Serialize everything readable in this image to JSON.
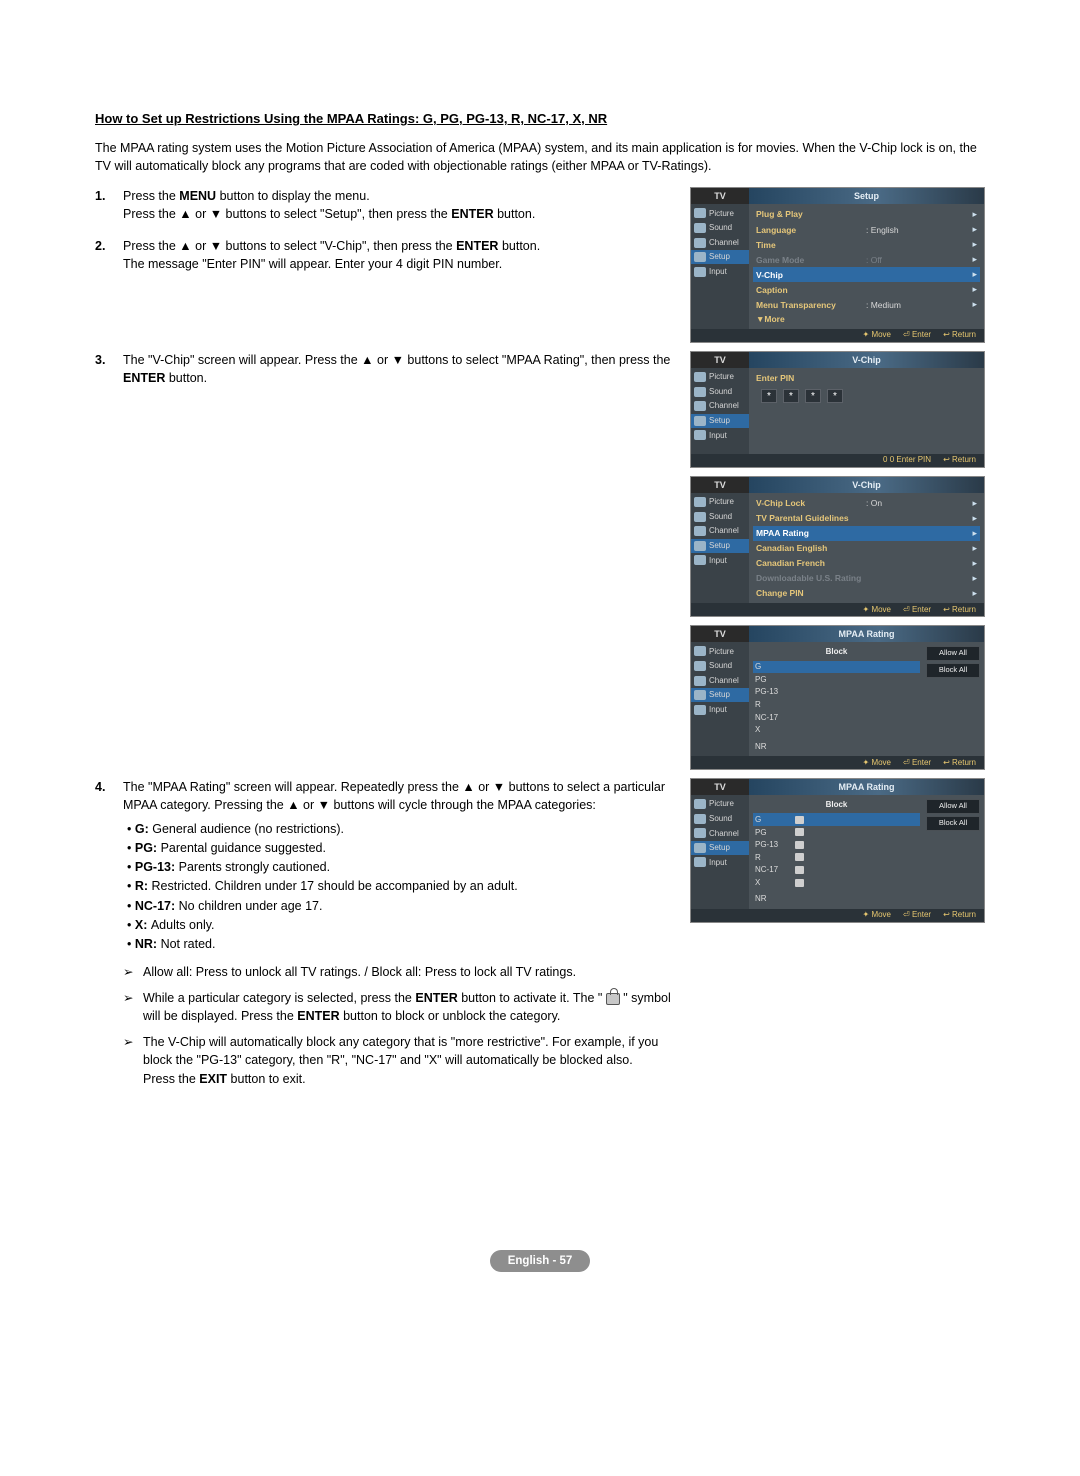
{
  "title": "How to Set up Restrictions Using the MPAA Ratings: G, PG, PG-13, R, NC-17, X, NR",
  "intro": "The MPAA rating system uses the Motion Picture Association of America (MPAA) system, and its main application is for movies. When the V-Chip lock is on, the TV will automatically block any programs that are coded with objectionable ratings (either MPAA or TV-Ratings).",
  "steps": {
    "s1a": "Press the ",
    "s1b": " button to display the menu.",
    "s1c": "Press the ▲ or ▼ buttons to select \"Setup\", then press the ",
    "s1d": " button.",
    "s2a": "Press the ▲ or ▼ buttons to select \"V-Chip\", then press the ",
    "s2b": " button.",
    "s2c": "The message \"Enter PIN\" will appear. Enter your 4 digit PIN number.",
    "s3a": "The \"V-Chip\" screen will appear. Press the ▲ or ▼ buttons to select \"MPAA Rating\", then press the ",
    "s3b": " button.",
    "s4": "The \"MPAA Rating\" screen will appear. Repeatedly press the ▲ or ▼ buttons to select a particular MPAA category. Pressing the ▲ or ▼ buttons will cycle through the MPAA categories:",
    "menu": "MENU",
    "enter": "ENTER",
    "exit": "EXIT"
  },
  "categories": [
    {
      "k": "G",
      "d": "General audience (no restrictions)."
    },
    {
      "k": "PG",
      "d": "Parental guidance suggested."
    },
    {
      "k": "PG-13",
      "d": "Parents strongly cautioned."
    },
    {
      "k": "R",
      "d": "Restricted. Children under 17 should be accompanied by an adult."
    },
    {
      "k": "NC-17",
      "d": "No children under age 17."
    },
    {
      "k": "X",
      "d": "Adults only."
    },
    {
      "k": "NR",
      "d": "Not rated."
    }
  ],
  "notes": {
    "n1": "Allow all: Press to unlock all TV ratings. / Block all: Press to lock all TV ratings.",
    "n2a": "While a particular category is selected, press the ",
    "n2b": " button to activate it. The \" ",
    "n2c": " \" symbol will be displayed. Press the ",
    "n2d": " button to block or unblock the category.",
    "n3a": "The V-Chip will automatically block any category that is \"more restrictive\". For example, if you block the \"PG-13\" category, then \"R\", \"NC-17\" and \"X\" will automatically be blocked also.",
    "n3b": "Press the ",
    "n3c": " button to exit."
  },
  "side_tabs": [
    "Picture",
    "Sound",
    "Channel",
    "Setup",
    "Input"
  ],
  "shot1": {
    "title": "Setup",
    "rows": [
      {
        "l": "Plug & Play",
        "v": "",
        "a": true
      },
      {
        "l": "Language",
        "v": ": English",
        "a": true
      },
      {
        "l": "Time",
        "v": "",
        "a": true
      },
      {
        "l": "Game Mode",
        "v": ": Off",
        "a": true,
        "dis": true
      },
      {
        "l": "V-Chip",
        "v": "",
        "a": true,
        "sel": true
      },
      {
        "l": "Caption",
        "v": "",
        "a": true
      },
      {
        "l": "Menu Transparency",
        "v": ": Medium",
        "a": true
      },
      {
        "l": "▼More",
        "v": "",
        "a": false
      }
    ],
    "foot": [
      "✦ Move",
      "⏎ Enter",
      "↩ Return"
    ]
  },
  "shot2": {
    "title": "V-Chip",
    "enter_pin": "Enter PIN",
    "foot": [
      "0 0 Enter PIN",
      "↩ Return"
    ]
  },
  "shot3": {
    "title": "V-Chip",
    "rows": [
      {
        "l": "V-Chip Lock",
        "v": ": On",
        "a": true
      },
      {
        "l": "TV Parental Guidelines",
        "v": "",
        "a": true
      },
      {
        "l": "MPAA Rating",
        "v": "",
        "a": true,
        "sel": true
      },
      {
        "l": "Canadian English",
        "v": "",
        "a": true
      },
      {
        "l": "Canadian French",
        "v": "",
        "a": true
      },
      {
        "l": "Downloadable U.S. Rating",
        "v": "",
        "a": true,
        "dis": true
      },
      {
        "l": "Change PIN",
        "v": "",
        "a": true
      }
    ],
    "foot": [
      "✦ Move",
      "⏎ Enter",
      "↩ Return"
    ]
  },
  "shot4": {
    "title": "MPAA Rating",
    "block": "Block",
    "allow_all": "Allow All",
    "block_all": "Block All",
    "ratings": [
      "G",
      "PG",
      "PG-13",
      "R",
      "NC-17",
      "X"
    ],
    "nr": "NR",
    "sel_idx": 0,
    "locks": [
      false,
      false,
      false,
      false,
      false,
      false
    ],
    "foot": [
      "✦ Move",
      "⏎ Enter",
      "↩ Return"
    ]
  },
  "shot5": {
    "title": "MPAA Rating",
    "block": "Block",
    "allow_all": "Allow All",
    "block_all": "Block All",
    "ratings": [
      "G",
      "PG",
      "PG-13",
      "R",
      "NC-17",
      "X"
    ],
    "nr": "NR",
    "sel_idx": 0,
    "locks": [
      true,
      true,
      true,
      true,
      true,
      true
    ],
    "foot": [
      "✦ Move",
      "⏎ Enter",
      "↩ Return"
    ]
  },
  "footer": "English - 57",
  "tv_label": "TV"
}
